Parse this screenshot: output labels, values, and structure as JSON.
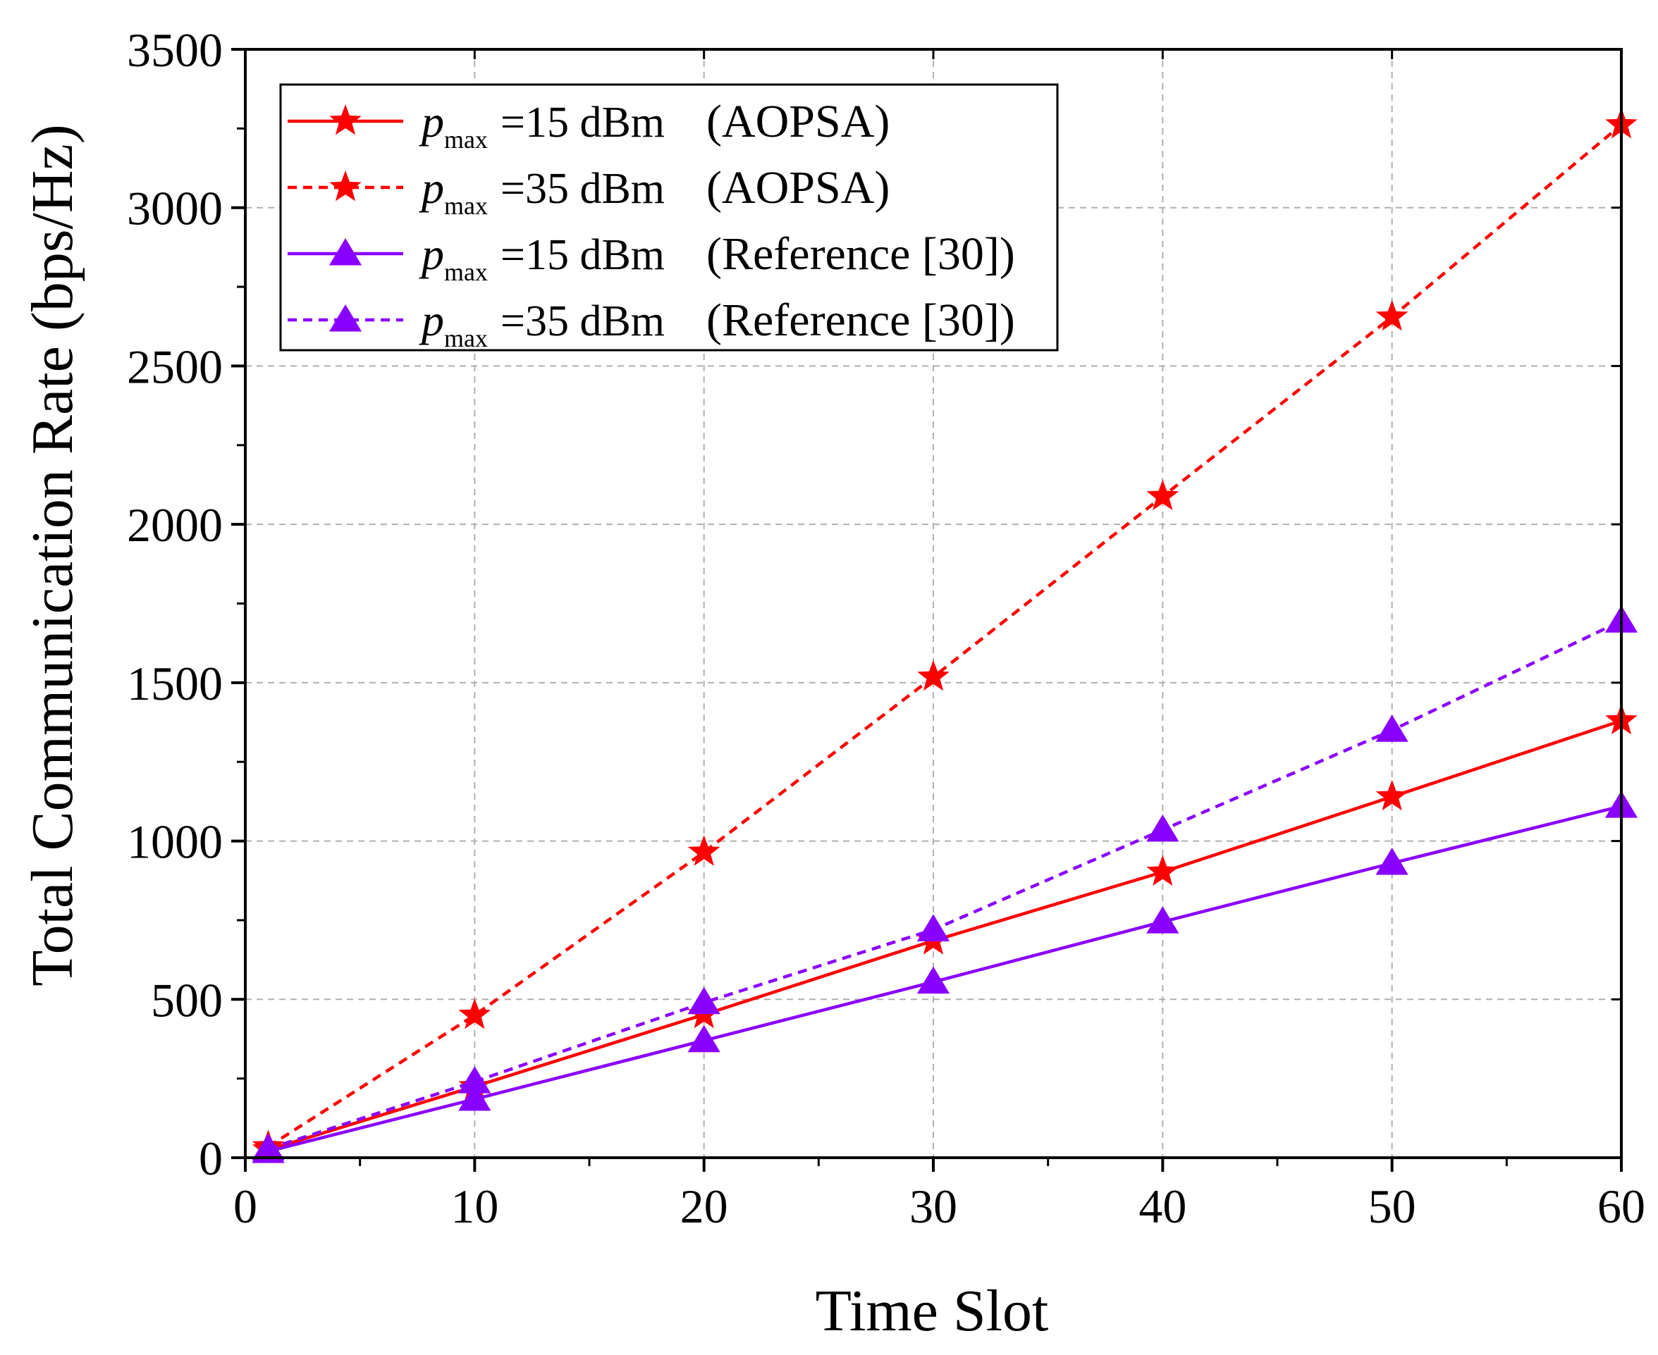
{
  "chart_data": {
    "type": "line",
    "title": "",
    "xlabel": "Time Slot",
    "ylabel": "Total Communication Rate (bps/Hz)",
    "xlim": [
      0,
      60
    ],
    "ylim": [
      0,
      3500
    ],
    "xticks": [
      0,
      10,
      20,
      30,
      40,
      50,
      60
    ],
    "yticks": [
      0,
      500,
      1000,
      1500,
      2000,
      2500,
      3000,
      3500
    ],
    "grid": true,
    "legend_position": "top-left",
    "x": [
      1,
      10,
      20,
      30,
      40,
      50,
      60
    ],
    "series": [
      {
        "name": "p_max = 15 dBm (AOPSA)",
        "legend": {
          "symbol": "p",
          "subscript": "max",
          "equation": "=15 dBm",
          "method": "(AOPSA)"
        },
        "values": [
          25,
          225,
          452,
          685,
          902,
          1140,
          1380
        ],
        "color": "#ff0000",
        "dash": "solid",
        "marker": "star"
      },
      {
        "name": "p_max = 35 dBm (AOPSA)",
        "legend": {
          "symbol": "p",
          "subscript": "max",
          "equation": "=35 dBm",
          "method": "(AOPSA)"
        },
        "values": [
          35,
          450,
          965,
          1518,
          2088,
          2655,
          3262
        ],
        "color": "#ff0000",
        "dash": "dashed",
        "marker": "star"
      },
      {
        "name": "p_max = 15 dBm (Reference [30])",
        "legend": {
          "symbol": "p",
          "subscript": "max",
          "equation": "=15 dBm",
          "method": "(Reference [30])"
        },
        "values": [
          20,
          185,
          370,
          555,
          745,
          930,
          1110
        ],
        "color": "#8a00ff",
        "dash": "solid",
        "marker": "triangle"
      },
      {
        "name": "p_max = 35 dBm (Reference [30])",
        "legend": {
          "symbol": "p",
          "subscript": "max",
          "equation": "=35 dBm",
          "method": "(Reference [30])"
        },
        "values": [
          28,
          240,
          490,
          720,
          1035,
          1350,
          1695
        ],
        "color": "#8a00ff",
        "dash": "dashed",
        "marker": "triangle"
      }
    ]
  }
}
